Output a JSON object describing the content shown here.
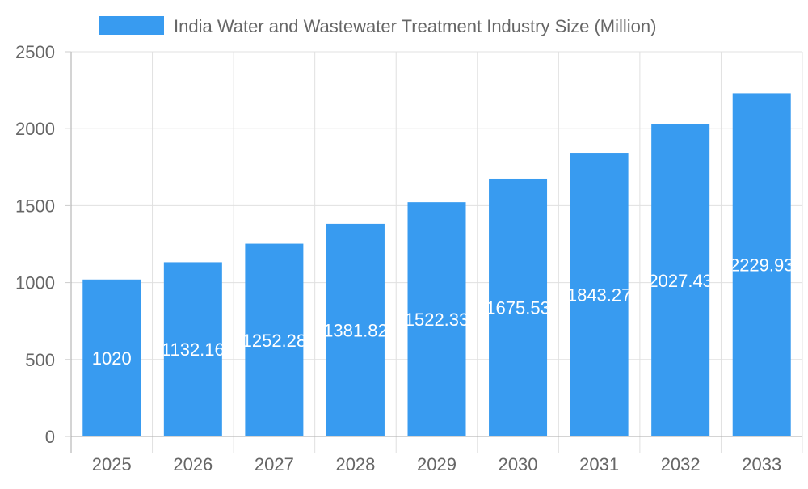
{
  "chart_data": {
    "type": "bar",
    "title": "",
    "xlabel": "",
    "ylabel": "",
    "categories": [
      "2025",
      "2026",
      "2027",
      "2028",
      "2029",
      "2030",
      "2031",
      "2032",
      "2033"
    ],
    "series": [
      {
        "name": "India Water and Wastewater Treatment Industry Size (Million)",
        "values": [
          1020,
          1132.16,
          1252.28,
          1381.82,
          1522.33,
          1675.53,
          1843.27,
          2027.43,
          2229.93
        ],
        "color": "#389BF0"
      }
    ],
    "data_labels": [
      "1020",
      "1132.16",
      "1252.28",
      "1381.82",
      "1522.33",
      "1675.53",
      "1843.27",
      "2027.43",
      "2229.93"
    ],
    "ylim": [
      0,
      2500
    ],
    "yticks": [
      "0",
      "500",
      "1000",
      "1500",
      "2000",
      "2500"
    ],
    "grid": true,
    "legend_placement": "top"
  }
}
